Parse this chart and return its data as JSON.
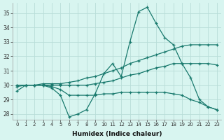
{
  "xlabel": "Humidex (Indice chaleur)",
  "background_color": "#d8f5f0",
  "grid_color": "#b8ddd8",
  "line_color": "#1a7a6e",
  "xlim": [
    -0.5,
    23.5
  ],
  "ylim": [
    27.6,
    35.7
  ],
  "yticks": [
    28,
    29,
    30,
    31,
    32,
    33,
    34,
    35
  ],
  "xticks": [
    0,
    1,
    2,
    3,
    4,
    5,
    6,
    7,
    8,
    9,
    10,
    11,
    12,
    13,
    14,
    15,
    16,
    17,
    18,
    19,
    20,
    21,
    22,
    23
  ],
  "line1_x": [
    0,
    1,
    2,
    3,
    4,
    5,
    6,
    7,
    8,
    9,
    10,
    11,
    12,
    13,
    14,
    15,
    16,
    17,
    18,
    19,
    20,
    21,
    22,
    23
  ],
  "line1_y": [
    29.6,
    30.0,
    30.0,
    30.0,
    29.8,
    29.3,
    27.8,
    28.0,
    28.3,
    29.4,
    30.8,
    31.5,
    30.6,
    33.0,
    35.1,
    35.4,
    34.3,
    33.3,
    32.8,
    31.5,
    30.5,
    29.0,
    28.5,
    28.3
  ],
  "line2_x": [
    0,
    1,
    2,
    3,
    4,
    5,
    6,
    7,
    8,
    9,
    10,
    11,
    12,
    13,
    14,
    15,
    16,
    17,
    18,
    19,
    20,
    21,
    22,
    23
  ],
  "line2_y": [
    30.0,
    30.0,
    30.0,
    30.1,
    30.1,
    30.1,
    30.2,
    30.3,
    30.5,
    30.6,
    30.8,
    31.0,
    31.2,
    31.5,
    31.7,
    31.9,
    32.1,
    32.3,
    32.5,
    32.7,
    32.8,
    32.8,
    32.8,
    32.8
  ],
  "line3_x": [
    0,
    1,
    2,
    3,
    4,
    5,
    6,
    7,
    8,
    9,
    10,
    11,
    12,
    13,
    14,
    15,
    16,
    17,
    18,
    19,
    20,
    21,
    22,
    23
  ],
  "line3_y": [
    30.0,
    30.0,
    30.0,
    30.0,
    30.0,
    30.0,
    30.0,
    30.0,
    30.0,
    30.1,
    30.2,
    30.3,
    30.5,
    30.7,
    30.8,
    31.0,
    31.2,
    31.3,
    31.5,
    31.5,
    31.5,
    31.5,
    31.5,
    31.4
  ],
  "line4_x": [
    0,
    1,
    2,
    3,
    4,
    5,
    6,
    7,
    8,
    9,
    10,
    11,
    12,
    13,
    14,
    15,
    16,
    17,
    18,
    19,
    20,
    21,
    22,
    23
  ],
  "line4_y": [
    29.9,
    30.0,
    30.0,
    30.0,
    29.9,
    29.7,
    29.3,
    29.3,
    29.3,
    29.3,
    29.4,
    29.4,
    29.5,
    29.5,
    29.5,
    29.5,
    29.5,
    29.5,
    29.4,
    29.3,
    29.0,
    28.8,
    28.5,
    28.3
  ]
}
